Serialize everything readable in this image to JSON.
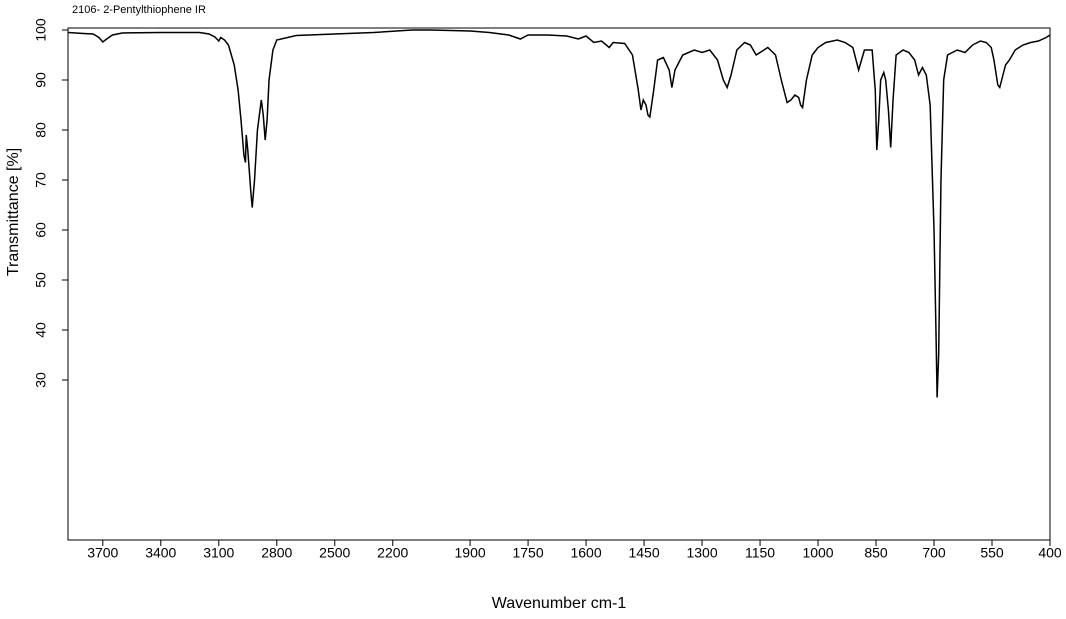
{
  "chart_data": {
    "type": "line",
    "title": "2106- 2-Pentylthiophene IR",
    "x_label": "Wavenumber cm-1",
    "y_label": "Transmittance [%]",
    "color": "#000000",
    "x_scale_break": 2000,
    "xlim": [
      3880,
      400
    ],
    "xticks": [
      3700,
      3400,
      3100,
      2800,
      2500,
      2200,
      1900,
      1750,
      1600,
      1450,
      1300,
      1150,
      1000,
      850,
      700,
      550,
      400
    ],
    "ylim": [
      -2,
      100.4
    ],
    "yticks": [
      30,
      40,
      50,
      60,
      70,
      80,
      90,
      100
    ],
    "x": [
      3880,
      3800,
      3750,
      3720,
      3700,
      3680,
      3650,
      3600,
      3400,
      3200,
      3150,
      3120,
      3100,
      3090,
      3070,
      3050,
      3020,
      3000,
      2985,
      2970,
      2962,
      2958,
      2950,
      2935,
      2927,
      2915,
      2900,
      2880,
      2870,
      2860,
      2850,
      2840,
      2820,
      2800,
      2700,
      2500,
      2300,
      2100,
      2000,
      1900,
      1850,
      1800,
      1770,
      1750,
      1700,
      1650,
      1620,
      1600,
      1580,
      1560,
      1540,
      1530,
      1500,
      1480,
      1465,
      1458,
      1452,
      1445,
      1440,
      1435,
      1425,
      1415,
      1400,
      1385,
      1378,
      1370,
      1350,
      1320,
      1300,
      1280,
      1260,
      1245,
      1235,
      1225,
      1210,
      1190,
      1175,
      1160,
      1150,
      1130,
      1110,
      1095,
      1080,
      1070,
      1060,
      1050,
      1045,
      1040,
      1030,
      1015,
      1000,
      980,
      950,
      930,
      910,
      895,
      880,
      860,
      852,
      848,
      843,
      838,
      830,
      825,
      818,
      812,
      806,
      798,
      780,
      765,
      750,
      740,
      730,
      720,
      710,
      700,
      695,
      692,
      688,
      682,
      675,
      665,
      640,
      620,
      600,
      580,
      565,
      552,
      545,
      535,
      530,
      525,
      515,
      505,
      490,
      470,
      450,
      430,
      410,
      400
    ],
    "values": [
      99.5,
      99.3,
      99.2,
      98.5,
      97.6,
      98.2,
      99,
      99.4,
      99.5,
      99.5,
      99.2,
      98.6,
      97.8,
      98.5,
      98,
      97,
      93,
      88,
      82,
      75,
      73.5,
      79,
      76,
      68,
      64.5,
      70,
      80,
      86,
      83,
      78,
      82,
      90,
      96,
      98,
      98.9,
      99.2,
      99.5,
      100,
      100,
      99.8,
      99.5,
      99,
      98.2,
      99,
      99,
      98.8,
      98.2,
      98.8,
      97.5,
      97.8,
      96.5,
      97.5,
      97.3,
      95,
      88,
      84,
      86,
      85,
      83,
      82.6,
      88,
      94,
      94.5,
      92,
      88.5,
      92,
      95,
      96,
      95.5,
      96,
      94,
      90,
      88.5,
      91,
      96,
      97.5,
      97,
      95,
      95.5,
      96.5,
      95,
      90,
      85.5,
      86,
      87,
      86.5,
      85,
      84.5,
      90,
      95,
      96.5,
      97.5,
      98,
      97.5,
      96.5,
      92,
      96,
      96,
      88,
      76,
      82,
      90,
      91.5,
      90,
      84,
      76.5,
      86,
      95,
      96,
      95.5,
      94,
      91,
      92.5,
      91,
      85,
      60,
      40,
      26.5,
      35,
      70,
      90,
      95,
      96,
      95.5,
      97,
      97.8,
      97.5,
      96.5,
      94,
      89,
      88.5,
      90,
      93,
      94,
      96,
      97,
      97.5,
      97.8,
      98.5,
      99
    ]
  }
}
